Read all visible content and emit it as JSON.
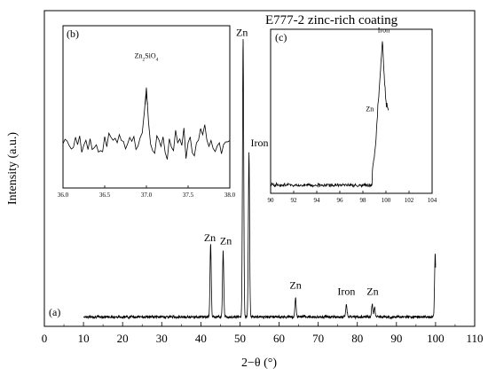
{
  "chart_data": [
    {
      "type": "line",
      "panel": "(a)",
      "title": "E777-2 zinc-rich coating",
      "xlabel": "2−θ (°)",
      "ylabel": "Intensity (a.u.)",
      "xlim": [
        0,
        110
      ],
      "xticks": [
        0,
        10,
        20,
        30,
        40,
        50,
        60,
        70,
        80,
        90,
        100,
        110
      ],
      "ylim": [
        0,
        100
      ],
      "yticks_labeled": false,
      "grid": false,
      "series": [
        {
          "color": "#000000",
          "x_range": [
            10,
            100
          ],
          "baseline": 3,
          "noise": 0.7,
          "peaks": [
            {
              "x": 42.5,
              "y": 26
            },
            {
              "x": 45.7,
              "y": 24
            },
            {
              "x": 50.8,
              "y": 91
            },
            {
              "x": 52.3,
              "y": 55
            },
            {
              "x": 64.2,
              "y": 9
            },
            {
              "x": 77.2,
              "y": 7
            },
            {
              "x": 83.8,
              "y": 7
            },
            {
              "x": 84.4,
              "y": 6
            },
            {
              "x": 99.9,
              "y": 23
            }
          ]
        }
      ],
      "annotations": [
        {
          "text": "Zn",
          "x": 42.3,
          "y": 27
        },
        {
          "text": "Zn",
          "x": 46.4,
          "y": 26
        },
        {
          "text": "Zn",
          "x": 50.5,
          "y": 92
        },
        {
          "text": "Iron",
          "x": 55,
          "y": 57
        },
        {
          "text": "Zn",
          "x": 64.2,
          "y": 12
        },
        {
          "text": "Iron",
          "x": 77.2,
          "y": 10
        },
        {
          "text": "Zn",
          "x": 83.9,
          "y": 10
        }
      ]
    },
    {
      "type": "line",
      "panel": "(b)",
      "xlim": [
        36.0,
        38.0
      ],
      "xticks": [
        "36.0",
        "36.5",
        "37.0",
        "37.5",
        "38.0"
      ],
      "ylim": [
        0,
        100
      ],
      "series": [
        {
          "color": "#000000",
          "x_range": [
            36.0,
            38.0
          ],
          "baseline": 28,
          "noise": 14,
          "peaks": [
            {
              "x": 37.0,
              "y": 58
            }
          ]
        }
      ],
      "annotations": [
        {
          "text": "Zn2SiO4",
          "x": 37.0,
          "y": 80
        }
      ]
    },
    {
      "type": "line",
      "panel": "(c)",
      "xlim": [
        90,
        104
      ],
      "xticks": [
        "90",
        "92",
        "94",
        "96",
        "98",
        "100",
        "102",
        "104"
      ],
      "ylim": [
        0,
        100
      ],
      "series": [
        {
          "color": "#000000",
          "x_range": [
            90,
            100.2
          ],
          "baseline": 5,
          "noise": 1.5,
          "edge": {
            "start": 98.8,
            "x": [
              98.8,
              99.1,
              99.3,
              99.5,
              99.7,
              99.85,
              100.0,
              100.2
            ],
            "y": [
              12,
              30,
              52,
              72,
              94,
              72,
              55,
              50
            ]
          }
        }
      ],
      "annotations": [
        {
          "text": "Iron",
          "x": 99.8,
          "y": 98
        },
        {
          "text": "Zn",
          "x": 98.6,
          "y": 50
        }
      ]
    }
  ]
}
